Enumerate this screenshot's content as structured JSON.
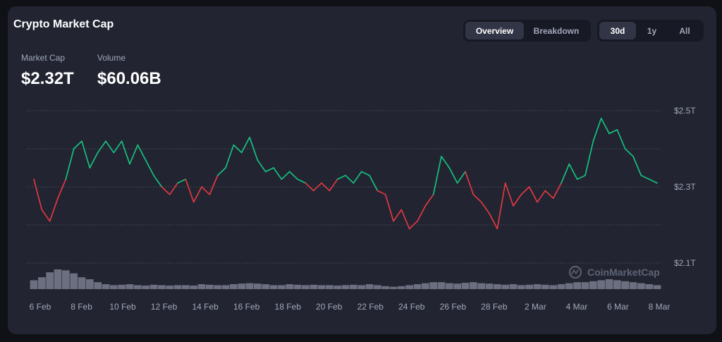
{
  "header": {
    "title": "Crypto Market Cap"
  },
  "stats": [
    {
      "label": "Market Cap",
      "value": "$2.32T"
    },
    {
      "label": "Volume",
      "value": "$60.06B"
    }
  ],
  "view_tabs": [
    {
      "label": "Overview",
      "active": true
    },
    {
      "label": "Breakdown",
      "active": false
    }
  ],
  "range_tabs": [
    {
      "label": "30d",
      "active": true
    },
    {
      "label": "1y",
      "active": false
    },
    {
      "label": "All",
      "active": false
    }
  ],
  "watermark": "CoinMarketCap",
  "colors": {
    "up": "#16c784",
    "down": "#ea3943",
    "volume": "#6b6f80",
    "grid": "#4a4e5e"
  },
  "chart_data": {
    "type": "line",
    "baseline": 2.31,
    "y_unit": "T",
    "ylim": [
      2.1,
      2.5
    ],
    "y_ticks": [
      {
        "value": 2.5,
        "label": "$2.5T"
      },
      {
        "value": 2.3,
        "label": "$2.3T"
      },
      {
        "value": 2.1,
        "label": "$2.1T"
      }
    ],
    "x_labels": [
      "6 Feb",
      "8 Feb",
      "10 Feb",
      "12 Feb",
      "14 Feb",
      "16 Feb",
      "18 Feb",
      "20 Feb",
      "22 Feb",
      "24 Feb",
      "26 Feb",
      "28 Feb",
      "2 Mar",
      "4 Mar",
      "6 Mar",
      "8 Mar"
    ],
    "series": [
      {
        "values": [
          2.32,
          2.24,
          2.21,
          2.27,
          2.32,
          2.4,
          2.42,
          2.35,
          2.39,
          2.42,
          2.39,
          2.42,
          2.36,
          2.41,
          2.37,
          2.33,
          2.3,
          2.28,
          2.31,
          2.32,
          2.26,
          2.3,
          2.28,
          2.33,
          2.35,
          2.41,
          2.39,
          2.43,
          2.37,
          2.34,
          2.35,
          2.32,
          2.34,
          2.32,
          2.31,
          2.29,
          2.31,
          2.29,
          2.32,
          2.33,
          2.31,
          2.34,
          2.33,
          2.29,
          2.28,
          2.21,
          2.24,
          2.19,
          2.21,
          2.25,
          2.28,
          2.38,
          2.35,
          2.31,
          2.34,
          2.28,
          2.26,
          2.23,
          2.19,
          2.31,
          2.25,
          2.28,
          2.3,
          2.26,
          2.29,
          2.27,
          2.31,
          2.36,
          2.32,
          2.33,
          2.42,
          2.48,
          2.44,
          2.45,
          2.4,
          2.38,
          2.33,
          2.32,
          2.31
        ],
        "volume": [
          0.45,
          0.6,
          0.85,
          1.0,
          0.95,
          0.8,
          0.6,
          0.5,
          0.35,
          0.25,
          0.2,
          0.22,
          0.25,
          0.2,
          0.18,
          0.22,
          0.2,
          0.18,
          0.2,
          0.2,
          0.18,
          0.25,
          0.22,
          0.2,
          0.2,
          0.25,
          0.28,
          0.3,
          0.28,
          0.25,
          0.2,
          0.2,
          0.25,
          0.22,
          0.2,
          0.22,
          0.2,
          0.2,
          0.18,
          0.2,
          0.22,
          0.2,
          0.25,
          0.2,
          0.15,
          0.12,
          0.15,
          0.2,
          0.25,
          0.3,
          0.35,
          0.35,
          0.3,
          0.28,
          0.32,
          0.35,
          0.3,
          0.28,
          0.25,
          0.22,
          0.25,
          0.2,
          0.22,
          0.25,
          0.22,
          0.2,
          0.25,
          0.3,
          0.35,
          0.35,
          0.4,
          0.45,
          0.5,
          0.45,
          0.4,
          0.35,
          0.3,
          0.25,
          0.2
        ]
      }
    ]
  }
}
